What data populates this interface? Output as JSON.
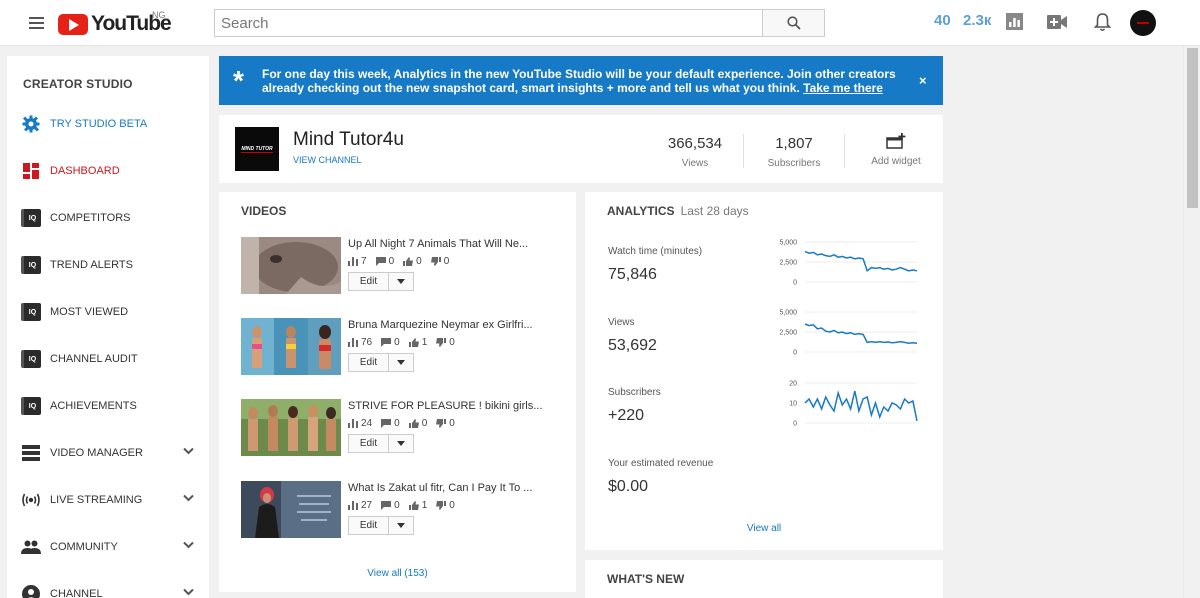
{
  "header": {
    "logo_text": "YouTube",
    "country": "NG",
    "search_placeholder": "Search",
    "stat_1": "40",
    "stat_2": "2.3к"
  },
  "sidebar": {
    "title": "CREATOR STUDIO",
    "items": [
      {
        "label": "TRY STUDIO BETA",
        "icon": "gear-icon",
        "color": "#167ac6"
      },
      {
        "label": "DASHBOARD",
        "icon": "dashboard-icon",
        "color": "#cc181e"
      },
      {
        "label": "COMPETITORS",
        "icon": "iq-icon"
      },
      {
        "label": "TREND ALERTS",
        "icon": "iq-icon"
      },
      {
        "label": "MOST VIEWED",
        "icon": "iq-icon"
      },
      {
        "label": "CHANNEL AUDIT",
        "icon": "iq-icon"
      },
      {
        "label": "ACHIEVEMENTS",
        "icon": "iq-icon"
      },
      {
        "label": "VIDEO MANAGER",
        "icon": "video-manager-icon",
        "expandable": true
      },
      {
        "label": "LIVE STREAMING",
        "icon": "live-icon",
        "expandable": true
      },
      {
        "label": "COMMUNITY",
        "icon": "community-icon",
        "expandable": true
      },
      {
        "label": "CHANNEL",
        "icon": "channel-icon",
        "expandable": true
      }
    ]
  },
  "banner": {
    "text": "For one day this week, Analytics in the new YouTube Studio will be your default experience. Join other creators already checking out the new snapshot card, smart insights + more and tell us what you think.",
    "link": "Take me there",
    "close": "×",
    "star": "*"
  },
  "channel": {
    "name": "Mind Tutor4u",
    "view_channel": "VIEW CHANNEL",
    "thumb_text": "MIND TUTOR",
    "views": "366,534",
    "views_label": "Views",
    "subscribers": "1,807",
    "subscribers_label": "Subscribers",
    "add_widget": "Add widget"
  },
  "videos": {
    "title": "VIDEOS",
    "items": [
      {
        "title": "Up All Night 7 Animals That Will Ne...",
        "views": "7",
        "comments": "0",
        "likes": "0",
        "dislikes": "0"
      },
      {
        "title": "Bruna Marquezine Neymar ex Girlfri...",
        "views": "76",
        "comments": "0",
        "likes": "1",
        "dislikes": "0"
      },
      {
        "title": "STRIVE FOR PLEASURE ! bikini girls...",
        "views": "24",
        "comments": "0",
        "likes": "0",
        "dislikes": "0"
      },
      {
        "title": "What Is Zakat ul fitr, Can I Pay It To ...",
        "views": "27",
        "comments": "0",
        "likes": "1",
        "dislikes": "0"
      }
    ],
    "edit_label": "Edit",
    "view_all": "View all (153)"
  },
  "analytics": {
    "title": "ANALYTICS",
    "period": "Last 28 days",
    "watch_time_label": "Watch time (minutes)",
    "watch_time_value": "75,846",
    "views_label": "Views",
    "views_value": "53,692",
    "subscribers_label": "Subscribers",
    "subscribers_value": "+220",
    "revenue_label": "Your estimated revenue",
    "revenue_value": "$0.00",
    "view_all": "View all",
    "accent": "#167ac6"
  },
  "chart_data": [
    {
      "type": "line",
      "series": [
        {
          "values": [
            3800,
            3600,
            3700,
            3400,
            3500,
            3300,
            3200,
            3400,
            3100,
            3200,
            3000,
            3100,
            2900,
            3000,
            2900,
            1400,
            1800,
            1700,
            1800,
            1600,
            1700,
            1500,
            1600,
            1800,
            1600,
            1400,
            1500,
            1400
          ]
        }
      ],
      "yticks": [
        "5,000",
        "2,500",
        "0"
      ],
      "ylim": [
        0,
        5000
      ]
    },
    {
      "type": "line",
      "series": [
        {
          "values": [
            3500,
            3300,
            3400,
            2900,
            3000,
            2600,
            2500,
            2700,
            2400,
            2500,
            2300,
            2400,
            2200,
            2300,
            2200,
            1200,
            1300,
            1200,
            1300,
            1200,
            1250,
            1150,
            1200,
            1300,
            1200,
            1100,
            1150,
            1100
          ]
        }
      ],
      "yticks": [
        "5,000",
        "2,500",
        "0"
      ],
      "ylim": [
        0,
        5000
      ]
    },
    {
      "type": "line",
      "series": [
        {
          "values": [
            10,
            12,
            8,
            12,
            7,
            13,
            9,
            6,
            15,
            9,
            12,
            7,
            16,
            6,
            12,
            13,
            4,
            10,
            3,
            8,
            6,
            10,
            9,
            7,
            12,
            10,
            11,
            1
          ]
        }
      ],
      "yticks": [
        "20",
        "10",
        "0"
      ],
      "ylim": [
        0,
        20
      ]
    }
  ],
  "whats_new": {
    "title": "WHAT'S NEW"
  }
}
